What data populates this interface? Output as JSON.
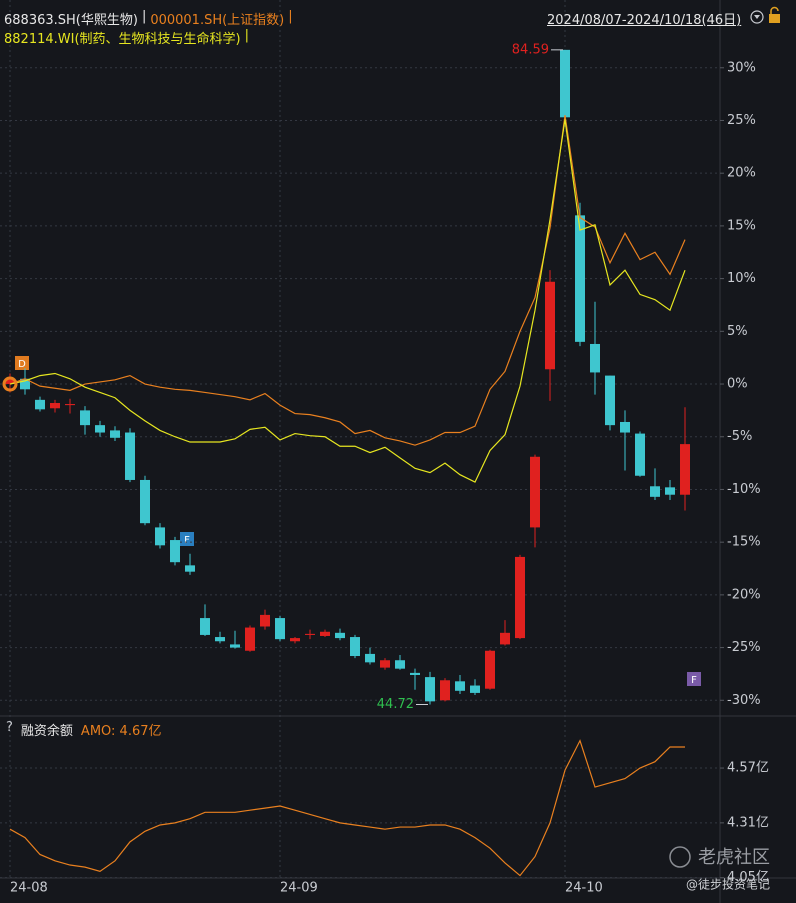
{
  "chart_data": [
    {
      "type": "candlestick",
      "series": [
        {
          "name": "688363.SH(华熙生物)",
          "type": "candlestick",
          "color_up": "#e0211f",
          "color_down": "#3fc6cf",
          "open": [
            0.0,
            0.5,
            -1.5,
            -2.3,
            -2.0,
            -2.5,
            -3.9,
            -4.4,
            -4.6,
            -9.1,
            -13.6,
            -14.8,
            -17.2,
            -22.2,
            -24.0,
            -24.7,
            -25.3,
            -23.0,
            -22.2,
            -24.4,
            -23.8,
            -23.9,
            -23.6,
            -24.0,
            -25.6,
            -26.9,
            -26.2,
            -27.4,
            -27.8,
            -30.0,
            -28.2,
            -28.6,
            -28.9,
            -24.7,
            -24.1,
            -13.6,
            1.4,
            31.7,
            16.0,
            3.8,
            0.8,
            -3.6,
            -4.7,
            -9.7,
            -9.8,
            -10.5
          ],
          "high": [
            1.0,
            1.5,
            -1.2,
            -1.5,
            -1.4,
            -2.1,
            -3.5,
            -4.0,
            -4.2,
            -8.7,
            -13.2,
            -14.5,
            -16.1,
            -20.9,
            -23.5,
            -23.4,
            -22.9,
            -21.4,
            -22.0,
            -24.0,
            -23.3,
            -23.3,
            -23.2,
            -23.8,
            -25.0,
            -26.0,
            -25.7,
            -27.0,
            -27.3,
            -27.9,
            -27.6,
            -28.0,
            -25.2,
            -22.4,
            -16.2,
            -6.7,
            10.8,
            31.7,
            17.2,
            7.8,
            0.8,
            -2.5,
            -4.5,
            -8.0,
            -9.1,
            -2.2
          ],
          "low": [
            -0.8,
            -1.0,
            -2.6,
            -2.7,
            -2.8,
            -4.8,
            -5.0,
            -5.4,
            -9.3,
            -13.4,
            -15.6,
            -17.2,
            -18.1,
            -23.9,
            -24.6,
            -25.1,
            -25.4,
            -23.3,
            -24.4,
            -24.6,
            -24.2,
            -24.0,
            -24.3,
            -26.0,
            -26.6,
            -27.1,
            -27.1,
            -29.0,
            -30.4,
            -30.1,
            -29.4,
            -29.5,
            -29.0,
            -24.8,
            -24.2,
            -15.5,
            -1.6,
            25.0,
            3.6,
            -1.0,
            -4.4,
            -8.2,
            -8.8,
            -11.0,
            -11.0,
            -12.0
          ],
          "close": [
            0.5,
            -0.5,
            -2.4,
            -1.8,
            -1.9,
            -3.9,
            -4.6,
            -5.1,
            -9.1,
            -13.2,
            -15.3,
            -16.9,
            -17.8,
            -23.8,
            -24.4,
            -25.0,
            -23.1,
            -21.9,
            -24.2,
            -24.1,
            -23.7,
            -23.5,
            -24.1,
            -25.8,
            -26.4,
            -26.2,
            -27.0,
            -27.6,
            -30.1,
            -28.1,
            -29.1,
            -29.3,
            -25.3,
            -23.6,
            -16.4,
            -6.9,
            9.7,
            25.3,
            4.0,
            1.1,
            -3.9,
            -4.6,
            -8.7,
            -10.7,
            -10.5,
            -5.7
          ]
        },
        {
          "name": "000001.SH(上证指数)",
          "type": "line",
          "color": "#e9801f",
          "values": [
            0,
            0.5,
            -0.2,
            -0.4,
            -0.6,
            0,
            0.2,
            0.4,
            0.8,
            0,
            -0.3,
            -0.5,
            -0.6,
            -0.8,
            -1.0,
            -1.2,
            -1.5,
            -0.9,
            -2.0,
            -2.8,
            -2.9,
            -3.2,
            -3.6,
            -4.7,
            -4.4,
            -5.1,
            -5.4,
            -5.8,
            -5.3,
            -4.6,
            -4.6,
            -4.0,
            -0.5,
            1.2,
            5.0,
            8.2,
            14.8,
            25.5,
            15.8,
            14.9,
            11.5,
            14.3,
            11.8,
            12.5,
            10.4,
            13.7
          ]
        },
        {
          "name": "882114.WI(制药、生物科技与生命科学)",
          "type": "line",
          "color": "#e6e620",
          "values": [
            0,
            0.3,
            0.8,
            1.0,
            0.5,
            -0.3,
            -0.8,
            -1.3,
            -2.5,
            -3.5,
            -4.4,
            -5.0,
            -5.5,
            -5.5,
            -5.5,
            -5.2,
            -4.3,
            -4.1,
            -5.3,
            -4.7,
            -4.9,
            -5.0,
            -5.9,
            -5.9,
            -6.5,
            -6.0,
            -7.0,
            -8.0,
            -8.4,
            -7.5,
            -8.6,
            -9.3,
            -6.3,
            -4.8,
            -0.2,
            7.0,
            15.6,
            25.1,
            14.6,
            15.1,
            9.4,
            10.8,
            8.5,
            8.0,
            7.0,
            10.8
          ]
        }
      ],
      "separator": "|",
      "date_range": "2024/08/07-2024/10/18(46日)",
      "ylim": [
        -31.3,
        35.1
      ],
      "yticks": [
        {
          "value": -30,
          "label": "-30%"
        },
        {
          "value": -25,
          "label": "-25%"
        },
        {
          "value": -20,
          "label": "-20%"
        },
        {
          "value": -15,
          "label": "-15%"
        },
        {
          "value": -10,
          "label": "-10%"
        },
        {
          "value": -5,
          "label": "-5%"
        },
        {
          "value": 0,
          "label": "0%"
        },
        {
          "value": 5,
          "label": "5%"
        },
        {
          "value": 10,
          "label": "10%"
        },
        {
          "value": 15,
          "label": "15%"
        },
        {
          "value": 20,
          "label": "20%"
        },
        {
          "value": 25,
          "label": "25%"
        },
        {
          "value": 30,
          "label": "30%"
        }
      ],
      "grid": true,
      "annotations": [
        {
          "label": "84.59",
          "color": "#e0211f"
        },
        {
          "label": "44.72",
          "color": "#2fbf4f"
        }
      ],
      "markers": [
        {
          "label": "D"
        },
        {
          "label": "F"
        },
        {
          "label": "F"
        }
      ]
    },
    {
      "type": "line",
      "help": "?",
      "legend_value": "AMO: 4.67亿",
      "series": [
        {
          "name": "融资余额",
          "color": "#e9801f",
          "values": [
            4.28,
            4.24,
            4.16,
            4.13,
            4.11,
            4.1,
            4.08,
            4.13,
            4.22,
            4.27,
            4.3,
            4.31,
            4.33,
            4.36,
            4.36,
            4.36,
            4.37,
            4.38,
            4.39,
            4.37,
            4.35,
            4.33,
            4.31,
            4.3,
            4.29,
            4.28,
            4.29,
            4.29,
            4.3,
            4.3,
            4.28,
            4.24,
            4.19,
            4.12,
            4.06,
            4.15,
            4.31,
            4.56,
            4.7,
            4.48,
            4.5,
            4.52,
            4.57,
            4.6,
            4.67,
            4.67
          ]
        }
      ],
      "categories": [
        "24-08",
        null,
        null,
        null,
        null,
        null,
        null,
        null,
        null,
        null,
        null,
        null,
        null,
        null,
        null,
        null,
        null,
        null,
        "24-09",
        null,
        null,
        null,
        null,
        null,
        null,
        null,
        null,
        null,
        null,
        null,
        null,
        null,
        null,
        null,
        null,
        null,
        null,
        "24-10",
        null,
        null,
        null,
        null,
        null,
        null,
        null,
        null
      ],
      "ylim": [
        4.02,
        4.76
      ],
      "yticks": [
        {
          "value": 4.05,
          "label": "4.05亿"
        },
        {
          "value": 4.31,
          "label": "4.31亿"
        },
        {
          "value": 4.57,
          "label": "4.57亿"
        }
      ],
      "grid": true
    }
  ],
  "watermark": {
    "brand": "老虎社区",
    "author": "@徒步投资笔记"
  }
}
